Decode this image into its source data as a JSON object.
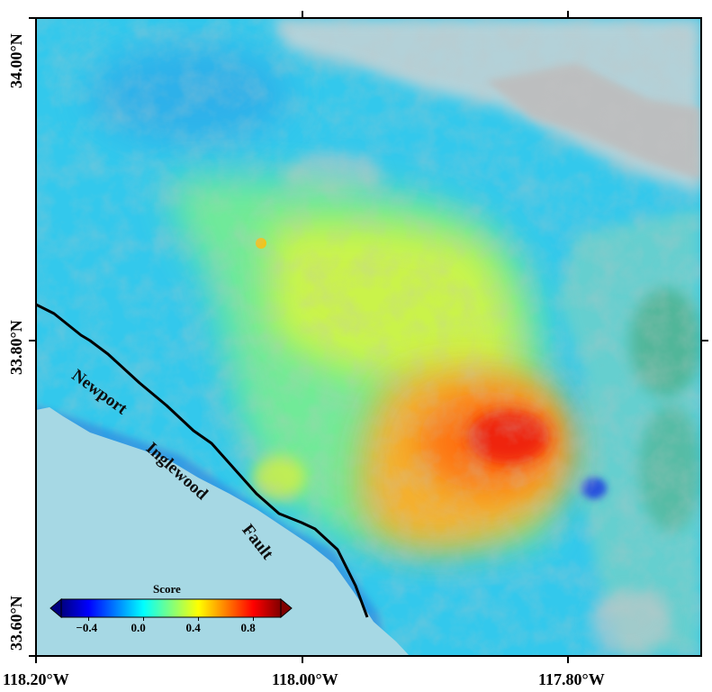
{
  "map": {
    "axes": {
      "x_ticks": [
        "118.20°W",
        "118.00°W",
        "117.80°W"
      ],
      "y_ticks": [
        "34.00°N",
        "33.80°N",
        "33.60°N"
      ]
    },
    "fault_label": [
      "Newport",
      "Inglewood",
      "Fault"
    ],
    "colorbar": {
      "title": "Score",
      "ticks": [
        "−0.4",
        "0.0",
        "0.4",
        "0.8"
      ],
      "range": [
        -0.6,
        1.0
      ],
      "colormap": "jet",
      "extend": "both"
    },
    "colors": {
      "ocean": "#a6d8e4",
      "background_score": "#33c8ec",
      "hill_shade": "#d9d9d9",
      "fault_line": "#000000"
    },
    "features": [
      {
        "name": "high-score-anomaly",
        "score": 0.95
      },
      {
        "name": "moderate-score-zone",
        "score": 0.45
      },
      {
        "name": "small-negative-anomaly",
        "score": -0.3
      }
    ]
  }
}
